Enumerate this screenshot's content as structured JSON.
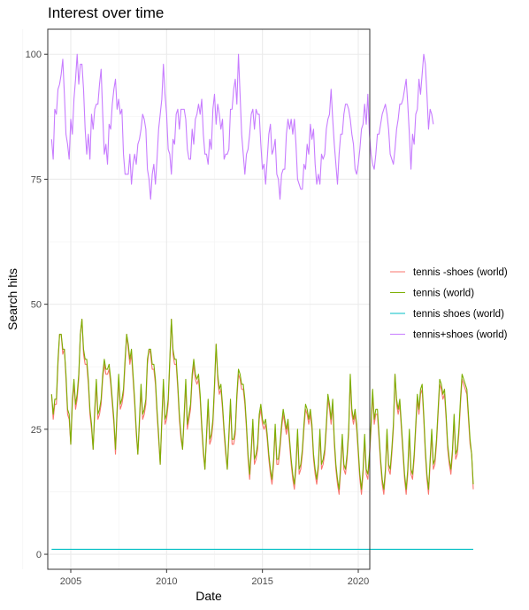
{
  "chart_data": {
    "type": "line",
    "title": "Interest over time",
    "xlabel": "Date",
    "ylabel": "Search hits",
    "xlim": [
      2003.8,
      2020.6
    ],
    "ylim": [
      -3,
      105
    ],
    "x_ticks": [
      2005,
      2010,
      2015,
      2020
    ],
    "y_ticks": [
      0,
      25,
      50,
      75,
      100
    ],
    "grid": true,
    "legend": "right",
    "x_start": 2004.0,
    "x_step": 0.08333,
    "series": [
      {
        "name": "tennis -shoes (world)",
        "color": "#F8766D",
        "values": [
          32,
          27,
          30,
          30,
          38,
          44,
          44,
          40,
          41,
          35,
          28,
          27,
          22,
          30,
          34,
          29,
          31,
          35,
          44,
          47,
          40,
          38,
          38,
          34,
          28,
          25,
          21,
          28,
          34,
          27,
          28,
          30,
          35,
          38,
          36,
          36,
          37,
          34,
          30,
          26,
          20,
          28,
          35,
          29,
          30,
          32,
          38,
          44,
          41,
          38,
          40,
          35,
          30,
          24,
          20,
          26,
          33,
          27,
          28,
          30,
          38,
          41,
          40,
          37,
          37,
          34,
          28,
          23,
          18,
          26,
          34,
          26,
          27,
          30,
          38,
          47,
          40,
          38,
          38,
          33,
          27,
          23,
          21,
          27,
          34,
          25,
          27,
          29,
          35,
          38,
          35,
          34,
          35,
          31,
          25,
          20,
          17,
          23,
          30,
          22,
          23,
          26,
          33,
          42,
          35,
          32,
          33,
          29,
          24,
          20,
          17,
          23,
          30,
          22,
          22,
          24,
          31,
          36,
          35,
          33,
          33,
          30,
          25,
          19,
          15,
          20,
          26,
          18,
          19,
          21,
          27,
          29,
          26,
          25,
          26,
          23,
          19,
          16,
          14,
          18,
          25,
          18,
          18,
          21,
          25,
          28,
          26,
          24,
          26,
          22,
          18,
          15,
          13,
          17,
          24,
          16,
          17,
          20,
          25,
          29,
          28,
          26,
          28,
          25,
          19,
          16,
          14,
          17,
          24,
          17,
          18,
          20,
          25,
          31,
          29,
          26,
          30,
          22,
          17,
          14,
          12,
          17,
          23,
          17,
          16,
          19,
          24,
          35,
          28,
          26,
          28,
          25,
          20,
          15,
          12,
          16,
          23,
          16,
          15,
          19,
          25,
          32,
          26,
          28,
          28,
          23,
          18,
          14,
          12,
          16,
          24,
          17,
          16,
          20,
          25,
          36,
          30,
          28,
          30,
          25,
          20,
          15,
          12,
          16,
          24,
          16,
          15,
          19,
          25,
          31,
          28,
          32,
          33,
          27,
          20,
          15,
          12,
          18,
          24,
          17,
          18,
          22,
          28,
          34,
          33,
          31,
          32,
          27,
          21,
          18,
          16,
          20,
          27,
          19,
          20,
          24,
          30,
          35,
          34,
          33,
          32,
          27,
          22,
          20,
          13
        ]
      },
      {
        "name": "tennis (world)",
        "color": "#7CAE00",
        "values": [
          32,
          28,
          31,
          31,
          39,
          44,
          44,
          41,
          41,
          36,
          29,
          28,
          22,
          31,
          35,
          30,
          32,
          36,
          44,
          47,
          41,
          39,
          39,
          35,
          29,
          26,
          21,
          29,
          35,
          28,
          29,
          31,
          36,
          39,
          37,
          37,
          38,
          35,
          31,
          27,
          21,
          29,
          36,
          30,
          31,
          33,
          39,
          44,
          42,
          39,
          41,
          36,
          31,
          25,
          20,
          27,
          34,
          28,
          29,
          31,
          39,
          41,
          41,
          38,
          38,
          35,
          29,
          24,
          18,
          27,
          35,
          27,
          28,
          31,
          39,
          47,
          41,
          39,
          39,
          34,
          28,
          24,
          21,
          28,
          35,
          26,
          28,
          30,
          36,
          39,
          36,
          35,
          36,
          32,
          26,
          21,
          17,
          24,
          31,
          23,
          24,
          27,
          34,
          42,
          36,
          33,
          34,
          30,
          25,
          21,
          17,
          24,
          31,
          23,
          23,
          25,
          32,
          37,
          36,
          34,
          34,
          31,
          26,
          20,
          16,
          21,
          27,
          19,
          20,
          22,
          28,
          30,
          27,
          26,
          27,
          24,
          20,
          17,
          15,
          19,
          26,
          19,
          19,
          22,
          26,
          29,
          27,
          25,
          27,
          23,
          19,
          16,
          14,
          18,
          25,
          17,
          18,
          21,
          26,
          30,
          29,
          27,
          29,
          26,
          20,
          17,
          15,
          18,
          25,
          18,
          19,
          21,
          26,
          32,
          30,
          27,
          31,
          23,
          18,
          15,
          13,
          18,
          24,
          18,
          17,
          20,
          25,
          36,
          29,
          27,
          29,
          26,
          21,
          16,
          13,
          17,
          24,
          17,
          16,
          20,
          26,
          33,
          27,
          29,
          29,
          24,
          19,
          15,
          13,
          17,
          25,
          18,
          17,
          21,
          26,
          36,
          31,
          29,
          31,
          26,
          21,
          16,
          13,
          17,
          25,
          17,
          16,
          20,
          26,
          32,
          29,
          33,
          34,
          28,
          21,
          16,
          13,
          19,
          25,
          18,
          19,
          23,
          29,
          35,
          34,
          32,
          33,
          28,
          22,
          19,
          17,
          21,
          28,
          20,
          21,
          25,
          31,
          36,
          35,
          34,
          33,
          28,
          23,
          20,
          14
        ]
      },
      {
        "name": "tennis shoes (world)",
        "color": "#00BFC4",
        "values": [
          1,
          1
        ]
      },
      {
        "name": "tennis+shoes (world)",
        "color": "#C77CFF",
        "values": [
          83,
          79,
          89,
          88,
          93,
          94,
          96,
          99,
          92,
          84,
          82,
          79,
          87,
          84,
          91,
          95,
          100,
          94,
          98,
          98,
          93,
          85,
          80,
          84,
          79,
          88,
          85,
          89,
          90,
          90,
          94,
          97,
          88,
          80,
          82,
          78,
          86,
          85,
          90,
          93,
          95,
          89,
          91,
          88,
          89,
          80,
          76,
          76,
          76,
          80,
          74,
          78,
          80,
          78,
          82,
          83,
          85,
          88,
          87,
          85,
          77,
          75,
          71,
          76,
          78,
          74,
          79,
          85,
          88,
          91,
          98,
          92,
          88,
          81,
          80,
          76,
          83,
          82,
          88,
          89,
          85,
          89,
          89,
          89,
          87,
          81,
          79,
          79,
          85,
          82,
          87,
          88,
          90,
          88,
          91,
          84,
          80,
          80,
          78,
          83,
          81,
          89,
          92,
          86,
          90,
          88,
          85,
          87,
          79,
          80,
          80,
          81,
          89,
          89,
          93,
          95,
          90,
          100,
          92,
          84,
          80,
          76,
          80,
          81,
          84,
          88,
          89,
          85,
          89,
          88,
          88,
          82,
          77,
          78,
          74,
          79,
          84,
          86,
          80,
          81,
          83,
          76,
          75,
          71,
          76,
          77,
          77,
          84,
          87,
          85,
          87,
          84,
          87,
          82,
          75,
          74,
          73,
          73,
          78,
          77,
          82,
          80,
          86,
          83,
          85,
          78,
          74,
          76,
          74,
          80,
          79,
          80,
          85,
          87,
          88,
          93,
          87,
          82,
          78,
          74,
          80,
          84,
          84,
          88,
          90,
          90,
          89,
          87,
          84,
          82,
          77,
          76,
          78,
          81,
          85,
          86,
          90,
          86,
          92,
          84,
          80,
          78,
          77,
          80,
          84,
          84,
          86,
          88,
          89,
          90,
          88,
          85,
          80,
          79,
          78,
          81,
          85,
          87,
          90,
          90,
          91,
          93,
          95,
          90,
          84,
          77,
          84,
          82,
          88,
          89,
          95,
          92,
          96,
          100,
          98,
          92,
          85,
          89,
          88,
          86
        ]
      }
    ]
  }
}
